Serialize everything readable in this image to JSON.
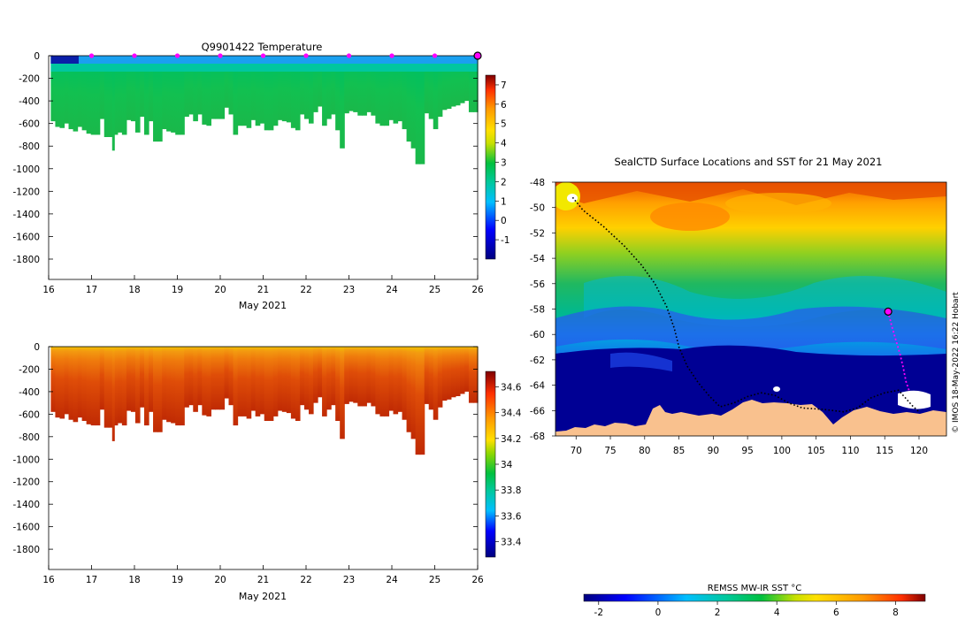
{
  "chart_data": [
    {
      "type": "heatmap",
      "panel": "temperature-profile",
      "title": "Q9901422  Temperature",
      "xlabel": "May 2021",
      "ylabel": "",
      "x_ticks": [
        16,
        17,
        18,
        19,
        20,
        21,
        22,
        23,
        24,
        25,
        26
      ],
      "xlim": [
        16,
        26
      ],
      "y_ticks": [
        0,
        -200,
        -400,
        -600,
        -800,
        -1000,
        -1200,
        -1400,
        -1600,
        -1800
      ],
      "ylim": [
        -1980,
        0
      ],
      "colorbar_ticks": [
        -1,
        0,
        1,
        2,
        3,
        4,
        5,
        6,
        7
      ],
      "colorbar_range": [
        -2,
        7.5
      ],
      "surface_markers_days": [
        17,
        18,
        19,
        20,
        21,
        22,
        23,
        24,
        25
      ],
      "end_marker_day": 26,
      "profile_depths_m": [
        -580,
        -630,
        -640,
        -600,
        -650,
        -670,
        -630,
        -660,
        -690,
        -700,
        -700,
        -560,
        -720,
        -720,
        -700,
        -680,
        -700,
        -570,
        -580,
        -680,
        -540,
        -700,
        -580,
        -760,
        -760,
        -650,
        -670,
        -680,
        -700,
        -700,
        -540,
        -520,
        -580,
        -520,
        -610,
        -620,
        -560,
        -560,
        -560,
        -460,
        -520,
        -700,
        -620,
        -620,
        -640,
        -570,
        -620,
        -600,
        -660,
        -660,
        -620,
        -570,
        -580,
        -590,
        -640,
        -660,
        -520,
        -560,
        -600,
        -500,
        -450,
        -620,
        -560,
        -520,
        -660,
        -820,
        -510,
        -490,
        -500,
        -530,
        -530,
        -500,
        -530,
        -600,
        -620,
        -620,
        -570,
        -600,
        -580,
        -650,
        -760,
        -820,
        -960,
        -960,
        -510,
        -560,
        -650,
        -540,
        -480,
        -470,
        -450,
        -440,
        -420,
        -400,
        -500,
        -500
      ],
      "narrow_spikes": [
        {
          "day": 17.48,
          "depth": -840
        }
      ]
    },
    {
      "type": "heatmap",
      "panel": "salinity-profile",
      "title": "",
      "xlabel": "May 2021",
      "ylabel": "",
      "x_ticks": [
        16,
        17,
        18,
        19,
        20,
        21,
        22,
        23,
        24,
        25,
        26
      ],
      "xlim": [
        16,
        26
      ],
      "y_ticks": [
        0,
        -200,
        -400,
        -600,
        -800,
        -1000,
        -1200,
        -1400,
        -1600,
        -1800
      ],
      "ylim": [
        -1980,
        0
      ],
      "colorbar_ticks": [
        33.4,
        33.6,
        33.8,
        34,
        34.2,
        34.4,
        34.6
      ],
      "colorbar_labels": [
        "33.4",
        "33.6",
        "33.8",
        "34",
        "34.2",
        "34.4",
        "34.6"
      ],
      "colorbar_range": [
        33.28,
        34.72
      ]
    },
    {
      "type": "heatmap",
      "panel": "sst-map",
      "title": "SealCTD Surface Locations and SST for 21 May 2021",
      "xlabel": "",
      "ylabel": "",
      "x_ticks": [
        70,
        75,
        80,
        85,
        90,
        95,
        100,
        105,
        110,
        115,
        120
      ],
      "xlim": [
        67,
        124
      ],
      "y_ticks": [
        -48,
        -50,
        -52,
        -54,
        -56,
        -58,
        -60,
        -62,
        -64,
        -66,
        -68
      ],
      "ylim": [
        -68,
        -48
      ],
      "colorbar_label": "REMSS MW-IR SST °C",
      "colorbar_ticks": [
        -2,
        0,
        2,
        4,
        6,
        8
      ],
      "colorbar_range": [
        -2.5,
        9.0
      ],
      "current_position": {
        "lon": 115.5,
        "lat": -58.2
      },
      "track": [
        [
          69.5,
          -49.2
        ],
        [
          71,
          -50.2
        ],
        [
          74,
          -51.5
        ],
        [
          77,
          -53
        ],
        [
          79.5,
          -54.5
        ],
        [
          81.5,
          -56
        ],
        [
          83.2,
          -57.8
        ],
        [
          84.3,
          -59.5
        ],
        [
          85,
          -61
        ],
        [
          86.2,
          -62.5
        ],
        [
          87.8,
          -63.8
        ],
        [
          89.5,
          -64.9
        ],
        [
          91,
          -65.7
        ],
        [
          93,
          -65.4
        ],
        [
          95,
          -64.9
        ],
        [
          97,
          -64.6
        ],
        [
          99,
          -64.8
        ],
        [
          101,
          -65.4
        ],
        [
          103,
          -65.8
        ],
        [
          106,
          -65.9
        ],
        [
          109,
          -66.1
        ],
        [
          111,
          -65.8
        ],
        [
          113,
          -65
        ],
        [
          115,
          -64.6
        ],
        [
          117,
          -64.4
        ],
        [
          118,
          -65
        ],
        [
          119,
          -65.6
        ],
        [
          120,
          -66.1
        ]
      ],
      "recent_track": [
        [
          115.5,
          -58.2
        ],
        [
          116,
          -59.3
        ],
        [
          116.6,
          -60.4
        ],
        [
          117.2,
          -61.5
        ],
        [
          117.7,
          -62.6
        ],
        [
          118.1,
          -63.7
        ],
        [
          118.6,
          -64.5
        ]
      ]
    }
  ],
  "watermark": "© IMOS 18-May-2022 16:22 Hobart"
}
